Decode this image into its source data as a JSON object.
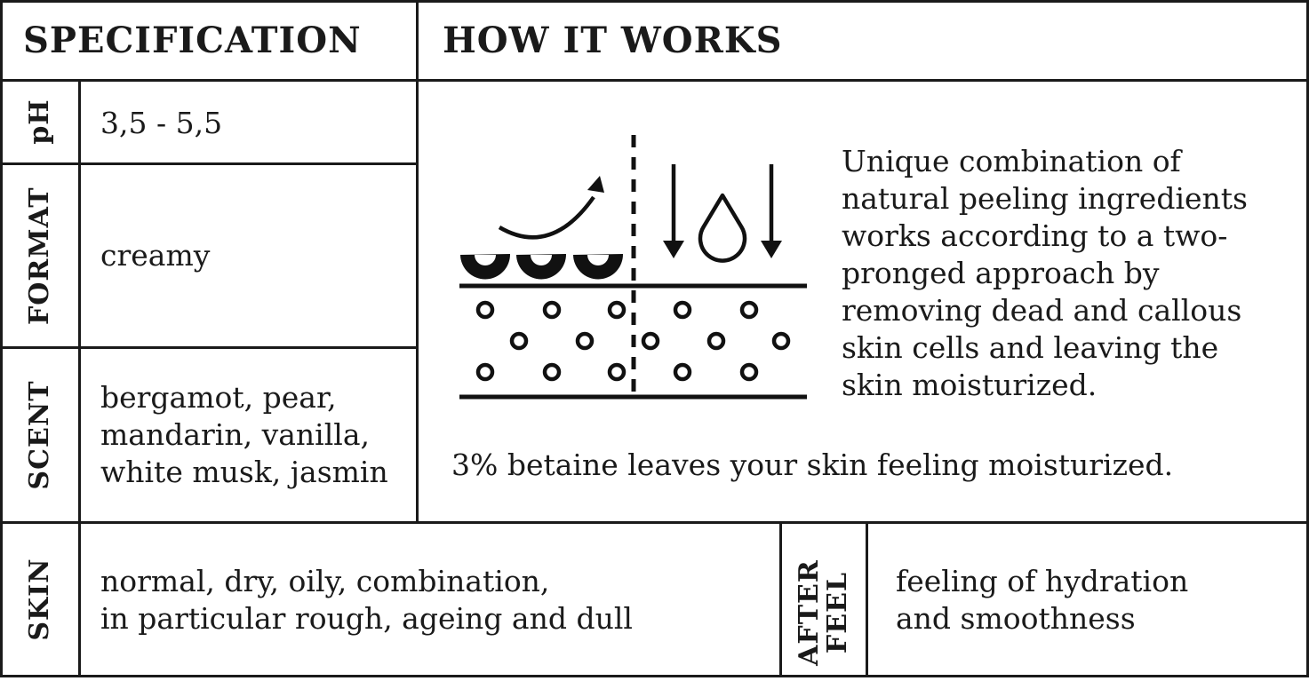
{
  "specification": {
    "title": "SPECIFICATION",
    "rows": [
      {
        "label": "pH",
        "value": "3,5 - 5,5"
      },
      {
        "label": "FORMAT",
        "value": "creamy"
      },
      {
        "label": "SCENT",
        "value_lines": [
          "bergamot, pear,",
          "mandarin, vanilla,",
          "white musk, jasmin"
        ]
      }
    ]
  },
  "how_it_works": {
    "title": "HOW IT WORKS",
    "description_lines": [
      "Unique combination of",
      "natural peeling ingredients",
      "works according to a two-",
      "pronged approach by",
      "removing dead and callous",
      "skin cells and leaving the",
      "skin moisturized."
    ],
    "note": "3% betaine leaves your skin feeling moisturized.",
    "diagram_icons": [
      "exfoliation-arrow-icon",
      "dead-skin-cells-icon",
      "skin-layer-icon",
      "down-arrow-icon",
      "water-drop-icon"
    ]
  },
  "skin": {
    "label": "SKIN",
    "value_lines": [
      "normal, dry, oily, combination,",
      "in particular rough, ageing and dull"
    ]
  },
  "after_feel": {
    "label_lines": [
      "AFTER",
      "FEEL"
    ],
    "value_lines": [
      "feeling of hydration",
      "and smoothness"
    ]
  }
}
